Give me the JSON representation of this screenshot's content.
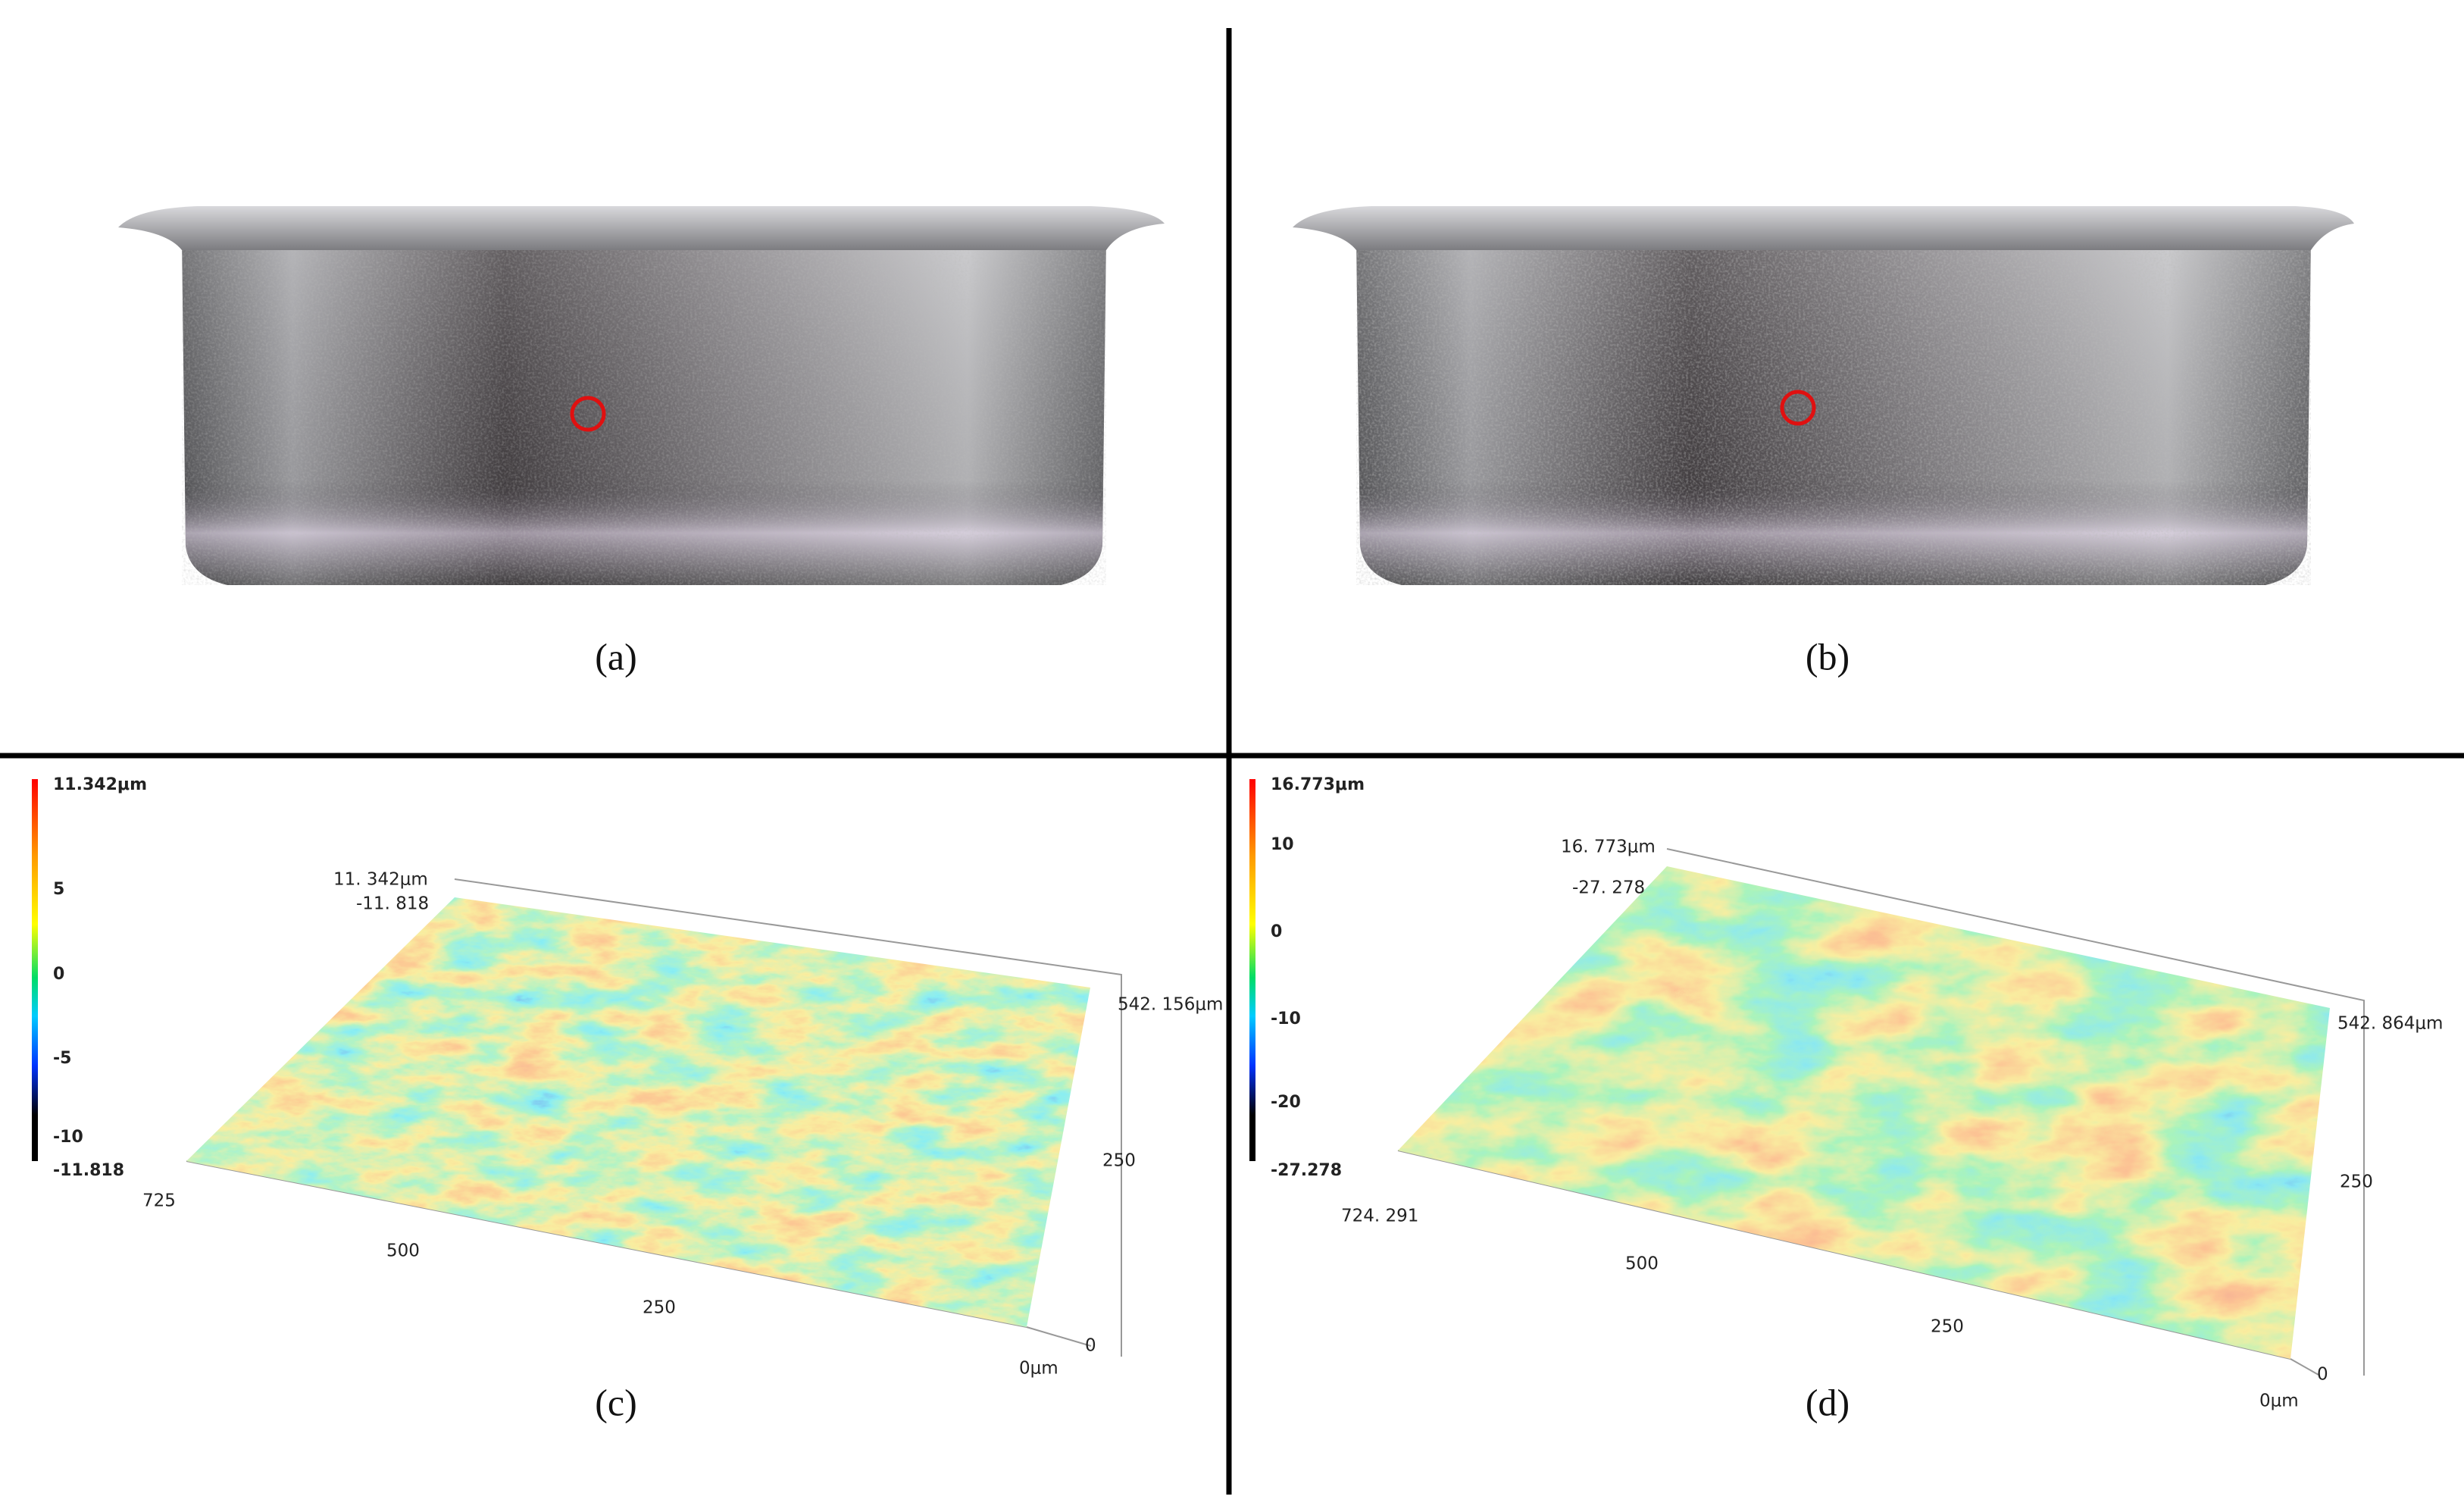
{
  "panels": [
    {
      "label": "(a)"
    },
    {
      "label": "(b)"
    },
    {
      "label": "(c)",
      "colorbar": [
        "11.342μm",
        "5",
        "0",
        "-5",
        "-10",
        "-11.818"
      ],
      "axis_labels": [
        "11. 342μm",
        "-11. 818",
        "542. 156μm",
        "250",
        "725",
        "500",
        "250",
        "0",
        "0μm"
      ]
    },
    {
      "label": "(d)",
      "colorbar": [
        "16.773μm",
        "10",
        "0",
        "-10",
        "-20",
        "-27.278"
      ],
      "axis_labels": [
        "16. 773μm",
        "-27. 278",
        "542. 864μm",
        "250",
        "724. 291",
        "500",
        "250",
        "0",
        "0μm"
      ]
    }
  ]
}
